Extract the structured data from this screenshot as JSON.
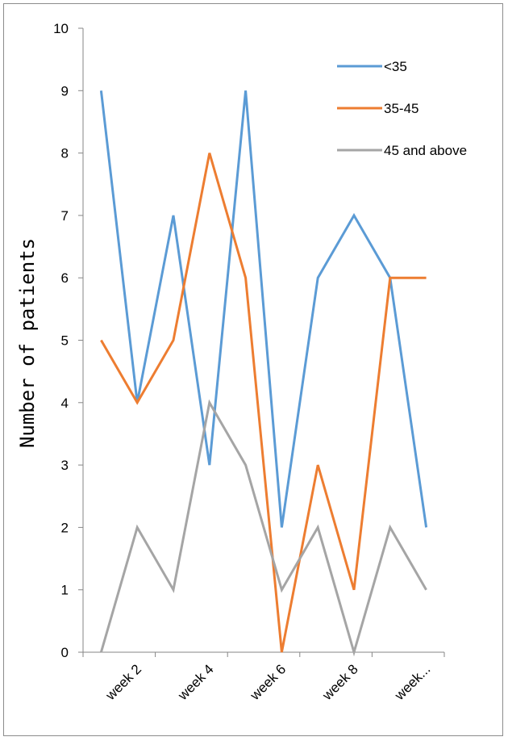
{
  "chart_data": {
    "type": "line",
    "title": "",
    "xlabel": "",
    "ylabel": "Number of patients",
    "ylim": [
      0,
      10
    ],
    "yticks": [
      0,
      1,
      2,
      3,
      4,
      5,
      6,
      7,
      8,
      9,
      10
    ],
    "x_tick_labels": [
      "week 2",
      "week 4",
      "week 6",
      "week 8",
      "week..."
    ],
    "legend_position": "top-right",
    "grid": false,
    "series": [
      {
        "name": "<35",
        "color": "#5b9bd5",
        "values": [
          9,
          4,
          7,
          3,
          9,
          2,
          6,
          7,
          6,
          2
        ]
      },
      {
        "name": "35-45",
        "color": "#ed7d31",
        "values": [
          5,
          4,
          5,
          8,
          6,
          0,
          3,
          1,
          6,
          6
        ]
      },
      {
        "name": "45 and above",
        "color": "#a5a5a5",
        "values": [
          0,
          2,
          1,
          4,
          3,
          1,
          2,
          0,
          2,
          1
        ]
      }
    ]
  }
}
